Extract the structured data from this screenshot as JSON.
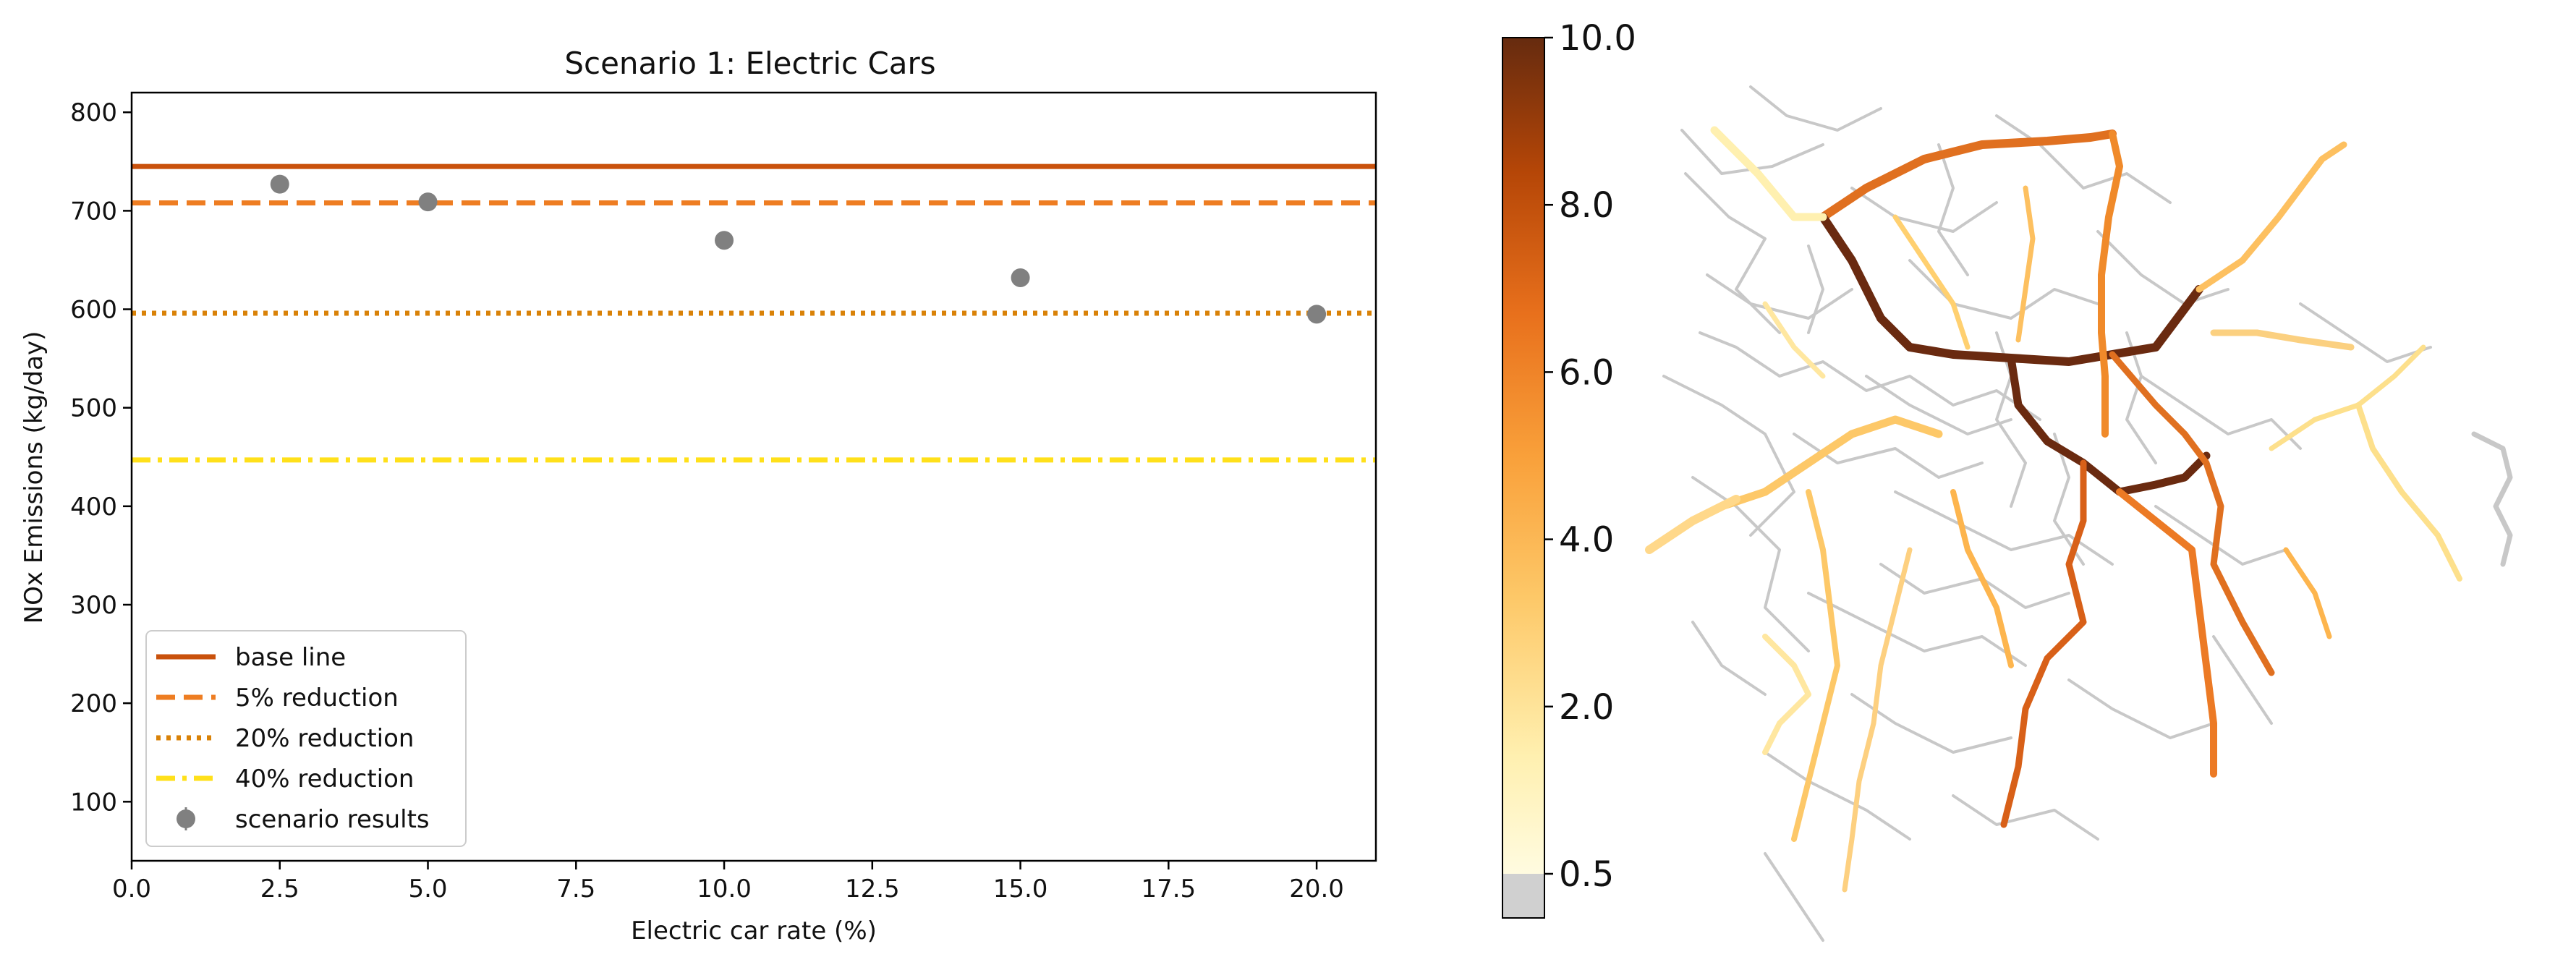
{
  "chart_data": [
    {
      "type": "scatter",
      "title": "Scenario 1: Electric Cars",
      "xlabel": "Electric car rate (%)",
      "ylabel": "NOx Emissions (kg/day)",
      "xlim": [
        0,
        21
      ],
      "ylim": [
        40,
        820
      ],
      "xticks": [
        "0.0",
        "2.5",
        "5.0",
        "7.5",
        "10.0",
        "12.5",
        "15.0",
        "17.5",
        "20.0"
      ],
      "yticks": [
        "100",
        "200",
        "300",
        "400",
        "500",
        "600",
        "700",
        "800"
      ],
      "grid": false,
      "legend_position": "lower-left",
      "reference_lines": [
        {
          "name": "base line",
          "y": 745,
          "style": "solid",
          "color": "#c9510c"
        },
        {
          "name": "5% reduction",
          "y": 708,
          "style": "dashed",
          "color": "#ee7d22"
        },
        {
          "name": "20% reduction",
          "y": 596,
          "style": "dotted",
          "color": "#d98208"
        },
        {
          "name": "40% reduction",
          "y": 447,
          "style": "dashdot",
          "color": "#ffe01a"
        }
      ],
      "series": [
        {
          "name": "scenario results",
          "color": "#808080",
          "x": [
            2.5,
            5.0,
            10.0,
            15.0,
            20.0
          ],
          "y": [
            727,
            709,
            670,
            632,
            595
          ]
        }
      ]
    },
    {
      "type": "heatmap",
      "colorbar": {
        "tick_labels": [
          "0.5",
          "2.0",
          "4.0",
          "6.0",
          "8.0",
          "10.0"
        ],
        "ticks": [
          0.5,
          2.0,
          4.0,
          6.0,
          8.0,
          10.0
        ],
        "range": [
          0,
          10.0
        ],
        "below_min_color": "#d0d0d0",
        "colormap": [
          "#fff8c4",
          "#fde08c",
          "#fdb54e",
          "#f58a2c",
          "#dc5d0f",
          "#a63a05",
          "#6a2a10"
        ]
      }
    }
  ]
}
